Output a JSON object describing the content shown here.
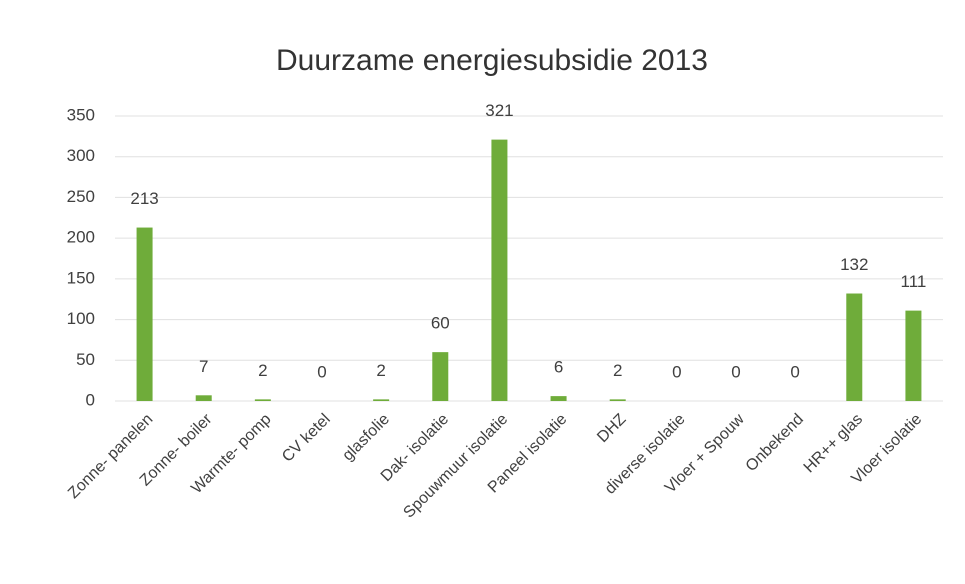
{
  "chart_data": {
    "type": "bar",
    "title": "Duurzame energiesubsidie 2013",
    "categories": [
      "Zonne- panelen",
      "Zonne- boiler",
      "Warmte- pomp",
      "CV ketel",
      "glasfolie",
      "Dak- isolatie",
      "Spouwmuur isolatie",
      "Paneel isolatie",
      "DHZ",
      "diverse isolatie",
      "Vloer + Spouw",
      "Onbekend",
      "HR++ glas",
      "Vloer isolatie"
    ],
    "values": [
      213,
      7,
      2,
      0,
      2,
      60,
      321,
      6,
      2,
      0,
      0,
      0,
      132,
      111
    ],
    "color": "#6fac3a",
    "ylim": [
      0,
      350
    ],
    "yticks": [
      0,
      50,
      100,
      150,
      200,
      250,
      300,
      350
    ],
    "grid": true
  }
}
